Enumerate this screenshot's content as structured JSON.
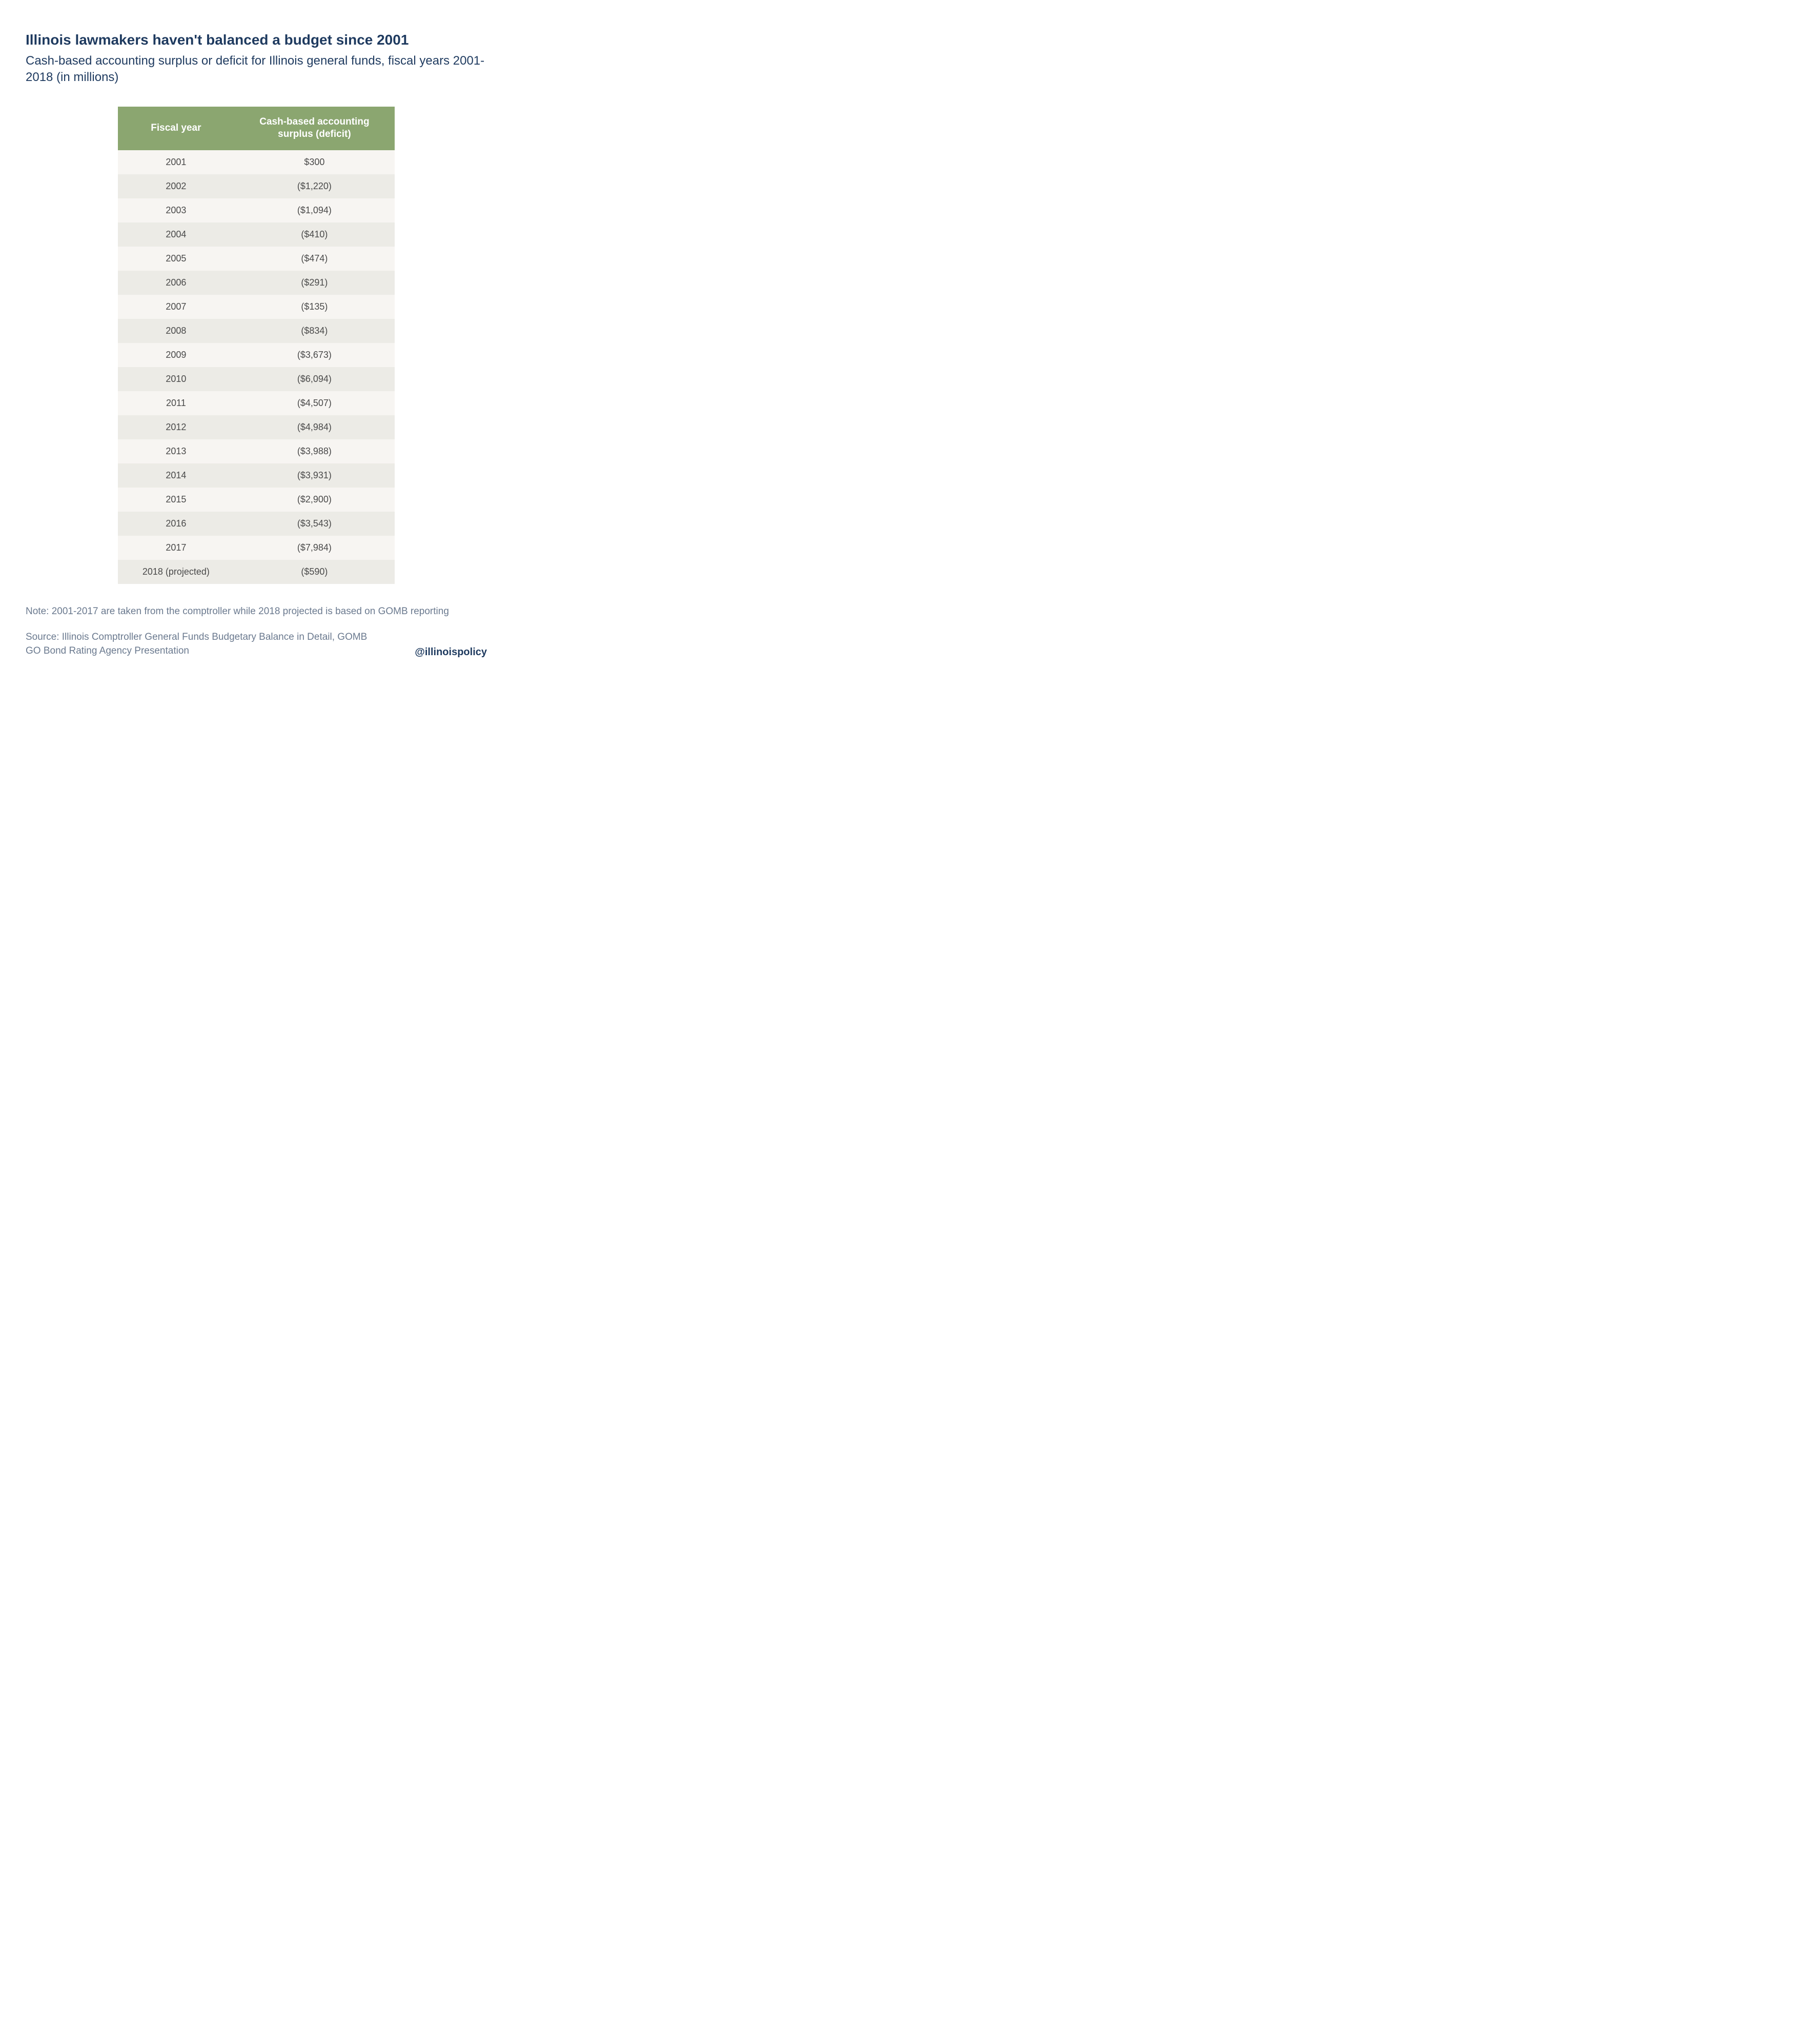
{
  "title": "Illinois lawmakers haven't balanced a budget since 2001",
  "subtitle": "Cash-based accounting surplus or deficit for Illinois general funds, fiscal years 2001-2018 (in millions)",
  "table": {
    "columns": [
      "Fiscal year",
      "Cash-based accounting surplus (deficit)"
    ],
    "rows": [
      [
        "2001",
        "$300"
      ],
      [
        "2002",
        "($1,220)"
      ],
      [
        "2003",
        "($1,094)"
      ],
      [
        "2004",
        "($410)"
      ],
      [
        "2005",
        "($474)"
      ],
      [
        "2006",
        "($291)"
      ],
      [
        "2007",
        "($135)"
      ],
      [
        "2008",
        "($834)"
      ],
      [
        "2009",
        "($3,673)"
      ],
      [
        "2010",
        "($6,094)"
      ],
      [
        "2011",
        "($4,507)"
      ],
      [
        "2012",
        "($4,984)"
      ],
      [
        "2013",
        "($3,988)"
      ],
      [
        "2014",
        "($3,931)"
      ],
      [
        "2015",
        "($2,900)"
      ],
      [
        "2016",
        "($3,543)"
      ],
      [
        "2017",
        "($7,984)"
      ],
      [
        "2018 (projected)",
        "($590)"
      ]
    ],
    "header_bg": "#8ba670",
    "header_text_color": "#ffffff",
    "row_odd_bg": "#f7f5f2",
    "row_even_bg": "#ecebe6",
    "cell_text_color": "#4a4a4a",
    "header_fontsize": 19,
    "cell_fontsize": 18
  },
  "note": "Note: 2001-2017 are taken from the comptroller while 2018 projected is based on GOMB reporting",
  "source": "Source: Illinois Comptroller General Funds Budgetary Balance in Detail, GOMB GO Bond Rating Agency Presentation",
  "handle": "@illinoispolicy",
  "colors": {
    "title_text": "#1e3a5f",
    "note_text": "#6b7a8f",
    "background": "#ffffff"
  },
  "typography": {
    "title_fontsize": 28,
    "title_weight": 700,
    "subtitle_fontsize": 24,
    "subtitle_weight": 400,
    "note_fontsize": 19,
    "handle_fontsize": 20,
    "handle_weight": 700
  }
}
